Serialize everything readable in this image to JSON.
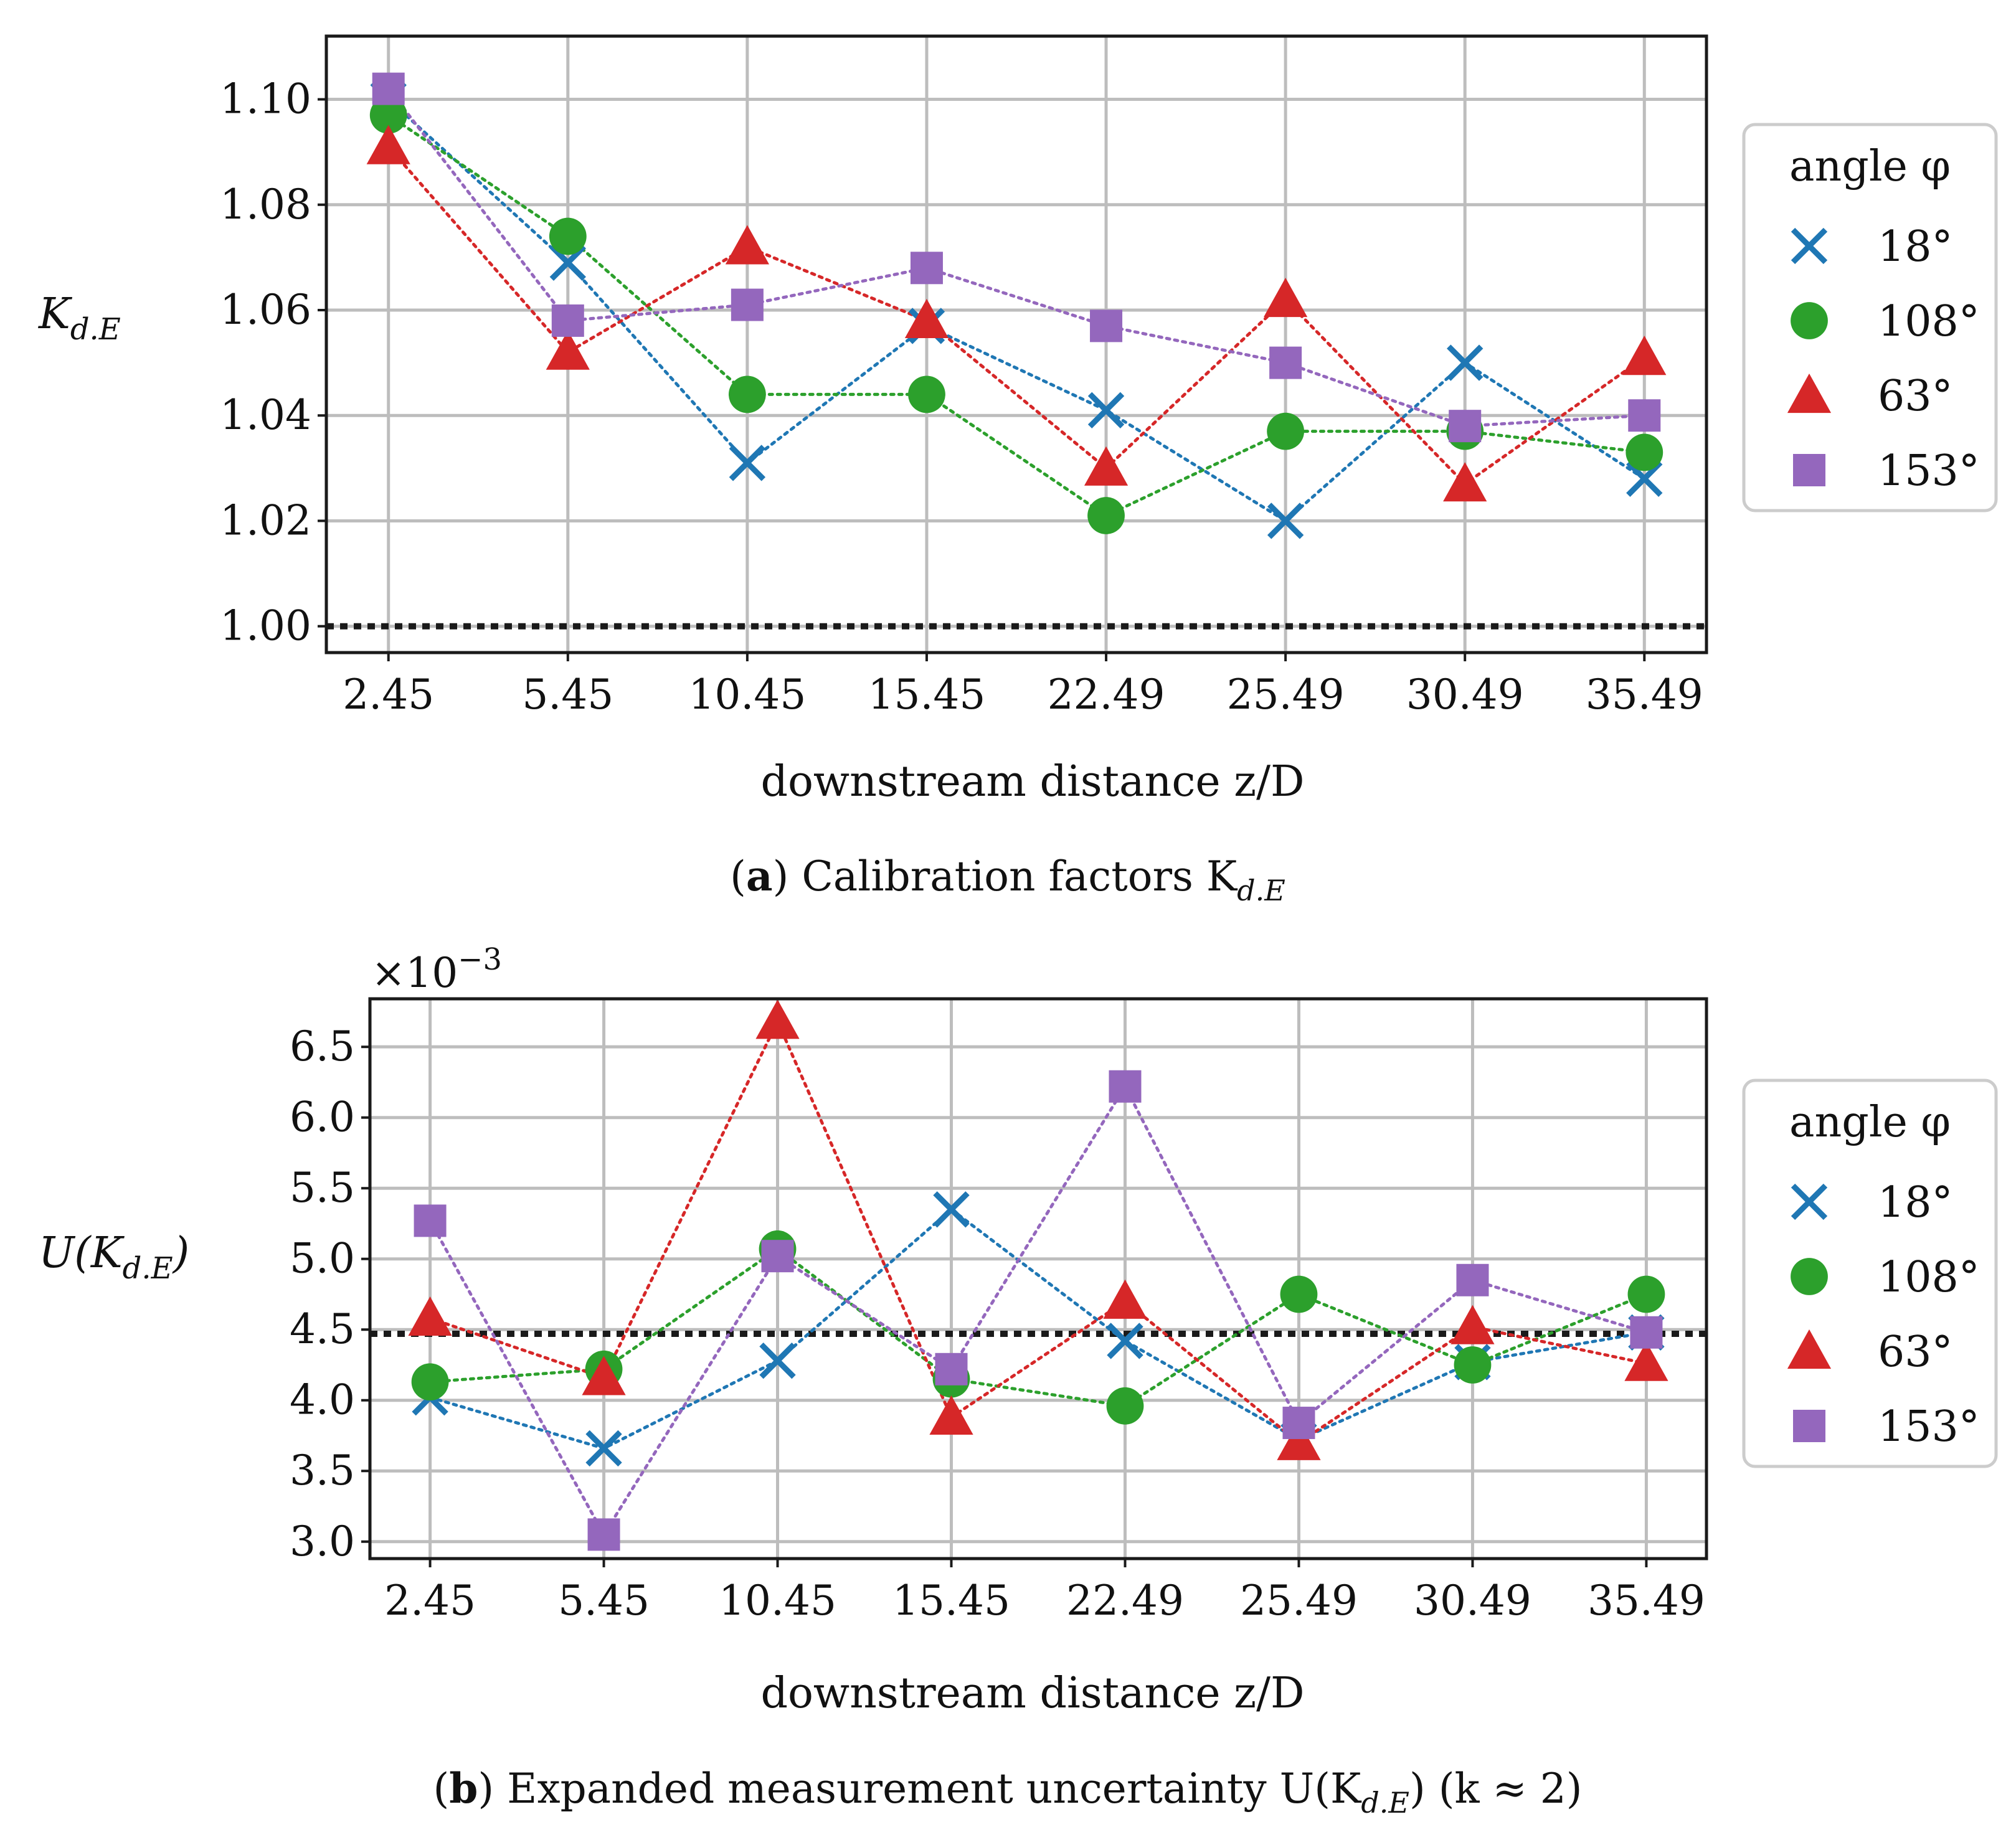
{
  "colors": {
    "blue": "#1f77b4",
    "green": "#2ca02c",
    "red": "#d62728",
    "purple": "#9467bd"
  },
  "chart_data": [
    {
      "type": "line",
      "title": "",
      "caption_bold": "a",
      "caption_text": " Calibration factors K",
      "caption_sub": "d.E",
      "xlabel": "downstream distance z/D",
      "ylabel_main": "K",
      "ylabel_sub": "d.E",
      "categories": [
        "2.45",
        "5.45",
        "10.45",
        "15.45",
        "22.49",
        "25.49",
        "30.49",
        "35.49"
      ],
      "ylim": [
        0.995,
        1.112
      ],
      "yticks": [
        "1.00",
        "1.02",
        "1.04",
        "1.06",
        "1.08",
        "1.10"
      ],
      "grid": true,
      "reference_line": 1.0,
      "legend": {
        "title": "angle φ",
        "position": "outside-right"
      },
      "series": [
        {
          "name": "18°",
          "marker": "x",
          "color": "#1f77b4",
          "values": [
            1.1,
            1.069,
            1.031,
            1.057,
            1.041,
            1.02,
            1.05,
            1.028
          ]
        },
        {
          "name": "108°",
          "marker": "circle",
          "color": "#2ca02c",
          "values": [
            1.097,
            1.074,
            1.044,
            1.044,
            1.021,
            1.037,
            1.037,
            1.033
          ]
        },
        {
          "name": "63°",
          "marker": "triangle",
          "color": "#d62728",
          "values": [
            1.091,
            1.052,
            1.072,
            1.058,
            1.03,
            1.062,
            1.027,
            1.051
          ]
        },
        {
          "name": "153°",
          "marker": "square",
          "color": "#9467bd",
          "values": [
            1.102,
            1.058,
            1.061,
            1.068,
            1.057,
            1.05,
            1.038,
            1.04
          ]
        }
      ]
    },
    {
      "type": "line",
      "title": "",
      "caption_bold": "b",
      "caption_text": " Expanded measurement uncertainty U(K",
      "caption_sub": "d.E",
      "caption_tail": ") (k ≈ 2)",
      "xlabel": "downstream distance z/D",
      "ylabel_main": "U(K",
      "ylabel_sub": "d.E",
      "ylabel_tail": ")",
      "multiplier": "×10",
      "multiplier_exp": "−3",
      "categories": [
        "2.45",
        "5.45",
        "10.45",
        "15.45",
        "22.49",
        "25.49",
        "30.49",
        "35.49"
      ],
      "ylim": [
        2.88,
        6.84
      ],
      "yticks": [
        "3.0",
        "3.5",
        "4.0",
        "4.5",
        "5.0",
        "5.5",
        "6.0",
        "6.5"
      ],
      "grid": true,
      "reference_line": 4.47,
      "legend": {
        "title": "angle φ",
        "position": "outside-right"
      },
      "series": [
        {
          "name": "18°",
          "marker": "x",
          "color": "#1f77b4",
          "values": [
            4.02,
            3.66,
            4.28,
            5.35,
            4.42,
            3.72,
            4.27,
            4.48
          ]
        },
        {
          "name": "108°",
          "marker": "circle",
          "color": "#2ca02c",
          "values": [
            4.13,
            4.22,
            5.07,
            4.15,
            3.96,
            4.75,
            4.25,
            4.75
          ]
        },
        {
          "name": "63°",
          "marker": "triangle",
          "color": "#d62728",
          "values": [
            4.58,
            4.16,
            6.68,
            3.88,
            4.7,
            3.7,
            4.52,
            4.26
          ]
        },
        {
          "name": "153°",
          "marker": "square",
          "color": "#9467bd",
          "values": [
            5.27,
            3.05,
            5.02,
            4.22,
            6.22,
            3.84,
            4.85,
            4.48
          ]
        }
      ]
    }
  ]
}
